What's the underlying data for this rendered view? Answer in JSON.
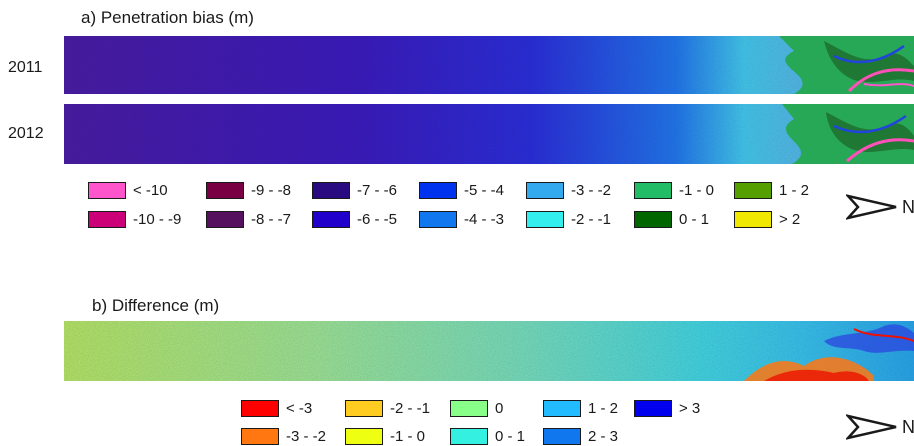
{
  "panel_a": {
    "title": "a) Penetration bias (m)",
    "rows": [
      {
        "label": "2011"
      },
      {
        "label": "2012"
      }
    ],
    "legend": [
      {
        "label": "< -10",
        "color": "#ff55cc"
      },
      {
        "label": "-10 - -9",
        "color": "#cc0077"
      },
      {
        "label": "-9 - -8",
        "color": "#7a0044"
      },
      {
        "label": "-8 - -7",
        "color": "#55115e"
      },
      {
        "label": "-7 - -6",
        "color": "#2a0a80"
      },
      {
        "label": "-6 - -5",
        "color": "#2200cc"
      },
      {
        "label": "-5 - -4",
        "color": "#0033ee"
      },
      {
        "label": "-4 - -3",
        "color": "#1177ee"
      },
      {
        "label": "-3 - -2",
        "color": "#33aaee"
      },
      {
        "label": "-2 - -1",
        "color": "#33f0ee"
      },
      {
        "label": "-1 - 0",
        "color": "#22bb66"
      },
      {
        "label": "0 - 1",
        "color": "#006600"
      },
      {
        "label": "1 - 2",
        "color": "#55a000"
      },
      {
        "label": "> 2",
        "color": "#f0e800"
      }
    ],
    "north_label": "N"
  },
  "panel_b": {
    "title": "b) Difference (m)",
    "legend": [
      {
        "label": "< -3",
        "color": "#ff0000"
      },
      {
        "label": "-3 - -2",
        "color": "#ff7711"
      },
      {
        "label": "-2 - -1",
        "color": "#ffcc22"
      },
      {
        "label": "-1 - 0",
        "color": "#eeff11"
      },
      {
        "label": "0",
        "color": "#88ff88"
      },
      {
        "label": "0 - 1",
        "color": "#33f0e0"
      },
      {
        "label": "1 - 2",
        "color": "#22bbff"
      },
      {
        "label": "2 - 3",
        "color": "#1177ee"
      },
      {
        "label": "> 3",
        "color": "#0000ee"
      }
    ],
    "north_label": "N"
  }
}
